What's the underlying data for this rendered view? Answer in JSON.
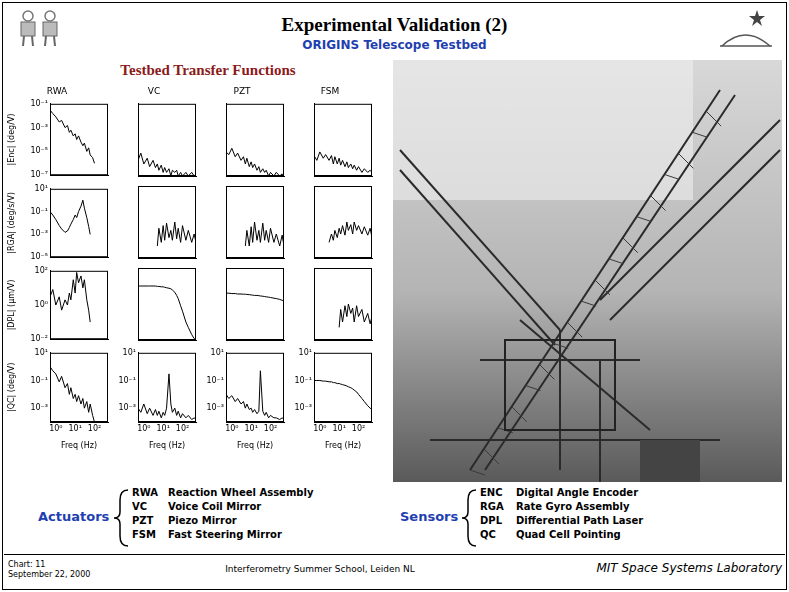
{
  "header": {
    "title": "Experimental Validation (2)",
    "subtitle": "ORIGINS Telescope Testbed"
  },
  "figure_title": "Testbed Transfer Functions",
  "chart_data": [
    {
      "type": "line",
      "title": "RWA",
      "y_label": "|Enc| (deg/V)",
      "color": "#000000",
      "log": true,
      "grid": false,
      "tick_labels": "y",
      "x": [
        0.5,
        0.7,
        1,
        1.5,
        2,
        3,
        4,
        5,
        6,
        8,
        10,
        12,
        15,
        20,
        25,
        30,
        40,
        50,
        60,
        80,
        100
      ],
      "values": [
        0.03,
        0.015,
        0.008,
        0.003,
        0.004,
        0.001,
        0.0015,
        0.0004,
        0.0006,
        0.0002,
        0.0003,
        0.0001,
        0.0002,
        6e-05,
        3e-05,
        5e-05,
        1e-05,
        2e-05,
        5e-06,
        3e-06,
        1e-06
      ],
      "xlim": [
        0.5,
        500
      ],
      "ylim": [
        1e-07,
        0.1
      ],
      "yticks": [
        {
          "value": 1e-07,
          "label": "10⁻⁷"
        },
        {
          "value": 1e-05,
          "label": "10⁻⁵"
        },
        {
          "value": 0.001,
          "label": "10⁻³"
        },
        {
          "value": 0.1,
          "label": "10⁻¹"
        }
      ]
    },
    {
      "type": "line",
      "title": "VC",
      "color": "#000000",
      "log": true,
      "grid": false,
      "tick_labels": false,
      "x": [
        0.5,
        0.7,
        1,
        1.5,
        2,
        3,
        4,
        5,
        6,
        8,
        10,
        12,
        15,
        20,
        25,
        30,
        40,
        50,
        60,
        80,
        100,
        150,
        200,
        300,
        400,
        500
      ],
      "values": [
        2e-06,
        8e-06,
        1e-06,
        3e-06,
        6e-07,
        2e-06,
        5e-07,
        1e-06,
        3e-07,
        8e-07,
        2e-07,
        5e-07,
        2e-07,
        4e-07,
        1e-07,
        3e-07,
        2e-07,
        3e-07,
        1e-07,
        2e-07,
        1e-07,
        2e-07,
        1e-07,
        2e-07,
        1e-07,
        1.5e-07
      ],
      "xlim": [
        0.5,
        500
      ],
      "ylim": [
        1e-07,
        0.1
      ]
    },
    {
      "type": "line",
      "title": "PZT",
      "color": "#000000",
      "log": true,
      "grid": false,
      "tick_labels": false,
      "x": [
        0.5,
        0.7,
        1,
        1.5,
        2,
        3,
        4,
        5,
        6,
        8,
        10,
        12,
        15,
        20,
        25,
        30,
        40,
        50,
        60,
        80,
        100,
        150,
        200,
        300,
        400,
        500
      ],
      "values": [
        1e-05,
        6e-06,
        2e-05,
        4e-06,
        8e-06,
        2e-06,
        4e-06,
        1e-06,
        3e-06,
        6e-07,
        1.5e-06,
        5e-07,
        1e-06,
        3e-07,
        6e-07,
        2e-07,
        4e-07,
        2e-07,
        3e-07,
        1e-07,
        2e-07,
        1e-07,
        2e-07,
        1e-07,
        1.5e-07,
        1e-07
      ],
      "xlim": [
        0.5,
        500
      ],
      "ylim": [
        1e-07,
        0.1
      ]
    },
    {
      "type": "line",
      "title": "FSM",
      "color": "#000000",
      "log": true,
      "grid": false,
      "tick_labels": false,
      "x": [
        0.5,
        0.7,
        1,
        1.5,
        2,
        3,
        4,
        5,
        6,
        8,
        10,
        12,
        15,
        20,
        25,
        30,
        40,
        50,
        60,
        80,
        100,
        150,
        200,
        300,
        400,
        500
      ],
      "values": [
        5e-06,
        2e-06,
        1e-05,
        3e-06,
        6e-06,
        2e-06,
        5e-06,
        1e-06,
        4e-06,
        1e-06,
        3e-06,
        8e-07,
        2e-06,
        6e-07,
        1.5e-06,
        5e-07,
        1e-06,
        4e-07,
        8e-07,
        3e-07,
        6e-07,
        2e-07,
        4e-07,
        2e-07,
        3e-07,
        2e-07
      ],
      "xlim": [
        0.5,
        500
      ],
      "ylim": [
        1e-07,
        0.1
      ]
    },
    {
      "type": "line",
      "y_label": "|RGA| (deg/s/V)",
      "color": "#000000",
      "log": true,
      "grid": false,
      "tick_labels": "y",
      "x": [
        0.5,
        0.7,
        1,
        1.5,
        2,
        3,
        4,
        5,
        6,
        8,
        10,
        12,
        15,
        20,
        25,
        30,
        40,
        50,
        60
      ],
      "values": [
        0.1,
        0.05,
        0.02,
        0.006,
        0.003,
        0.0015,
        0.002,
        0.004,
        0.008,
        0.02,
        0.05,
        0.03,
        0.1,
        0.3,
        1,
        0.2,
        0.03,
        0.005,
        0.001
      ],
      "xlim": [
        0.5,
        500
      ],
      "ylim": [
        1e-05,
        10
      ],
      "yticks": [
        {
          "value": 1e-05,
          "label": "10⁻⁵"
        },
        {
          "value": 0.001,
          "label": "10⁻³"
        },
        {
          "value": 0.1,
          "label": "10⁻¹"
        },
        {
          "value": 10,
          "label": "10¹"
        }
      ]
    },
    {
      "type": "line",
      "color": "#000000",
      "log": true,
      "grid": false,
      "tick_labels": false,
      "x": [
        5,
        6,
        8,
        10,
        12,
        15,
        20,
        25,
        30,
        40,
        50,
        60,
        80,
        100,
        150,
        200,
        300,
        400,
        500
      ],
      "values": [
        0.0001,
        0.003,
        0.0002,
        0.005,
        0.0003,
        0.008,
        0.0005,
        0.002,
        0.0003,
        0.01,
        0.0004,
        0.003,
        0.0002,
        0.005,
        0.0003,
        0.002,
        0.0002,
        0.001,
        0.0002
      ],
      "xlim": [
        0.5,
        500
      ],
      "ylim": [
        1e-05,
        10
      ]
    },
    {
      "type": "line",
      "color": "#000000",
      "log": true,
      "grid": false,
      "tick_labels": false,
      "x": [
        5,
        6,
        8,
        10,
        12,
        15,
        20,
        25,
        30,
        40,
        50,
        60,
        80,
        100,
        150,
        200,
        300,
        400,
        500
      ],
      "values": [
        0.0001,
        0.002,
        0.0001,
        0.004,
        0.0002,
        0.01,
        0.0003,
        0.002,
        0.0002,
        0.008,
        0.0003,
        0.002,
        0.0002,
        0.003,
        0.0002,
        0.001,
        0.0001,
        0.0008,
        0.0001
      ],
      "xlim": [
        0.5,
        500
      ],
      "ylim": [
        1e-05,
        10
      ]
    },
    {
      "type": "line",
      "color": "#000000",
      "log": true,
      "grid": false,
      "tick_labels": false,
      "x": [
        3,
        4,
        5,
        6,
        8,
        10,
        12,
        15,
        20,
        25,
        30,
        40,
        50,
        60,
        80,
        100,
        150,
        200,
        300,
        400,
        500
      ],
      "values": [
        0.0002,
        0.001,
        0.0003,
        0.002,
        0.0005,
        0.003,
        0.001,
        0.005,
        0.0008,
        0.01,
        0.002,
        0.006,
        0.001,
        0.01,
        0.002,
        0.005,
        0.001,
        0.004,
        0.0008,
        0.003,
        0.0005
      ],
      "xlim": [
        0.5,
        500
      ],
      "ylim": [
        1e-05,
        10
      ]
    },
    {
      "type": "line",
      "y_label": "|DPL| (μm/V)",
      "color": "#000000",
      "log": true,
      "grid": false,
      "tick_labels": "y",
      "x": [
        0.5,
        0.7,
        1,
        1.5,
        2,
        3,
        4,
        5,
        6,
        8,
        10,
        12,
        15,
        20,
        25,
        30,
        40,
        50,
        60
      ],
      "values": [
        3,
        8,
        1,
        3,
        0.5,
        2,
        1,
        5,
        2,
        30,
        5,
        80,
        20,
        50,
        10,
        30,
        2,
        0.5,
        0.1
      ],
      "xlim": [
        0.5,
        500
      ],
      "ylim": [
        0.01,
        100
      ],
      "yticks": [
        {
          "value": 0.01,
          "label": "10⁻²"
        },
        {
          "value": 1,
          "label": "10⁰"
        },
        {
          "value": 100,
          "label": "10²"
        }
      ]
    },
    {
      "type": "line",
      "color": "#000000",
      "log": true,
      "grid": false,
      "tick_labels": false,
      "x": [
        0.5,
        0.7,
        1,
        1.5,
        2,
        3,
        4,
        5,
        6,
        8,
        10,
        12,
        15,
        20,
        25,
        30,
        40,
        50,
        60,
        80,
        100,
        150,
        200,
        300,
        400,
        500
      ],
      "values": [
        10,
        10,
        10,
        10,
        10,
        10,
        10,
        9.5,
        9.5,
        9,
        9,
        8.5,
        8,
        7.5,
        7,
        6,
        4.5,
        3,
        2,
        0.8,
        0.4,
        0.1,
        0.05,
        0.02,
        0.012,
        0.01
      ],
      "xlim": [
        0.5,
        500
      ],
      "ylim": [
        0.01,
        100
      ]
    },
    {
      "type": "line",
      "color": "#000000",
      "log": true,
      "grid": false,
      "tick_labels": false,
      "x": [
        0.5,
        0.7,
        1,
        1.5,
        2,
        3,
        4,
        5,
        6,
        8,
        10,
        12,
        15,
        20,
        25,
        30,
        40,
        50,
        60,
        80,
        100,
        150,
        200,
        300,
        400,
        500
      ],
      "values": [
        4,
        4,
        3.8,
        3.8,
        3.6,
        3.6,
        3.5,
        3.5,
        3.4,
        3.3,
        3.2,
        3.1,
        3,
        3,
        2.9,
        2.8,
        2.7,
        2.6,
        2.5,
        2.4,
        2.3,
        2.1,
        2,
        1.8,
        1.6,
        1.5
      ],
      "xlim": [
        0.5,
        500
      ],
      "ylim": [
        0.01,
        100
      ]
    },
    {
      "type": "line",
      "color": "#000000",
      "log": true,
      "grid": false,
      "tick_labels": false,
      "x": [
        10,
        12,
        15,
        20,
        25,
        30,
        40,
        50,
        60,
        80,
        100,
        150,
        200,
        300,
        400,
        500
      ],
      "values": [
        0.05,
        0.5,
        0.1,
        0.8,
        0.2,
        1,
        0.3,
        0.6,
        0.1,
        0.8,
        0.2,
        0.5,
        0.1,
        0.3,
        0.08,
        0.2
      ],
      "xlim": [
        0.5,
        500
      ],
      "ylim": [
        0.01,
        100
      ]
    },
    {
      "type": "line",
      "y_label": "|QC| (deg/V)",
      "x_label": "Freq (Hz)",
      "color": "#000000",
      "log": true,
      "grid": false,
      "tick_labels": true,
      "x": [
        0.5,
        0.7,
        1,
        1.5,
        2,
        3,
        4,
        5,
        6,
        8,
        10,
        12,
        15,
        20,
        25,
        30,
        40,
        50,
        60,
        80,
        100
      ],
      "values": [
        1,
        0.5,
        0.3,
        0.08,
        0.2,
        0.03,
        0.06,
        0.01,
        0.03,
        0.005,
        0.01,
        0.003,
        0.008,
        0.002,
        0.005,
        0.001,
        0.003,
        0.0005,
        0.002,
        0.0003,
        0.0001
      ],
      "xlim": [
        0.5,
        500
      ],
      "ylim": [
        0.0001,
        10
      ],
      "xticks": [
        {
          "value": 1,
          "label": "10⁰"
        },
        {
          "value": 10,
          "label": "10¹"
        },
        {
          "value": 100,
          "label": "10²"
        }
      ],
      "yticks": [
        {
          "value": 0.001,
          "label": "10⁻³"
        },
        {
          "value": 0.1,
          "label": "10⁻¹"
        },
        {
          "value": 10,
          "label": "10¹"
        }
      ]
    },
    {
      "type": "line",
      "x_label": "Freq (Hz)",
      "color": "#000000",
      "log": true,
      "grid": false,
      "tick_labels": true,
      "x": [
        0.5,
        0.7,
        1,
        1.5,
        2,
        3,
        4,
        5,
        6,
        8,
        10,
        12,
        15,
        20,
        25,
        30,
        40,
        50,
        60,
        80,
        100,
        150,
        200,
        300,
        400,
        500
      ],
      "values": [
        0.001,
        0.0005,
        0.002,
        0.0004,
        0.001,
        0.0003,
        0.0008,
        0.0003,
        0.0006,
        0.0002,
        0.0005,
        0.0003,
        0.001,
        0.3,
        0.002,
        0.0005,
        0.001,
        0.0003,
        0.0006,
        0.0002,
        0.0004,
        0.0002,
        0.0003,
        0.00015,
        0.0002,
        0.00015
      ],
      "xlim": [
        0.5,
        500
      ],
      "ylim": [
        0.0001,
        10
      ],
      "xticks": [
        {
          "value": 1,
          "label": "10⁰"
        },
        {
          "value": 10,
          "label": "10¹"
        },
        {
          "value": 100,
          "label": "10²"
        }
      ],
      "yticks": [
        {
          "value": 0.001,
          "label": "10⁻³"
        },
        {
          "value": 0.1,
          "label": "10⁻¹"
        },
        {
          "value": 10,
          "label": "10¹"
        }
      ]
    },
    {
      "type": "line",
      "x_label": "Freq (Hz)",
      "color": "#000000",
      "log": true,
      "grid": false,
      "tick_labels": true,
      "x": [
        0.5,
        0.7,
        1,
        1.5,
        2,
        3,
        4,
        5,
        6,
        8,
        10,
        12,
        15,
        20,
        25,
        30,
        40,
        50,
        60,
        80,
        100,
        150,
        200,
        300,
        400,
        500
      ],
      "values": [
        0.01,
        0.005,
        0.008,
        0.003,
        0.005,
        0.002,
        0.003,
        0.001,
        0.002,
        0.0008,
        0.001,
        0.0005,
        0.0008,
        0.0004,
        0.0006,
        0.5,
        0.0006,
        0.0003,
        0.0005,
        0.0002,
        0.0003,
        0.0002,
        0.0002,
        0.00015,
        0.0002,
        0.00015
      ],
      "xlim": [
        0.5,
        500
      ],
      "ylim": [
        0.0001,
        10
      ],
      "xticks": [
        {
          "value": 1,
          "label": "10⁰"
        },
        {
          "value": 10,
          "label": "10¹"
        },
        {
          "value": 100,
          "label": "10²"
        }
      ],
      "yticks": [
        {
          "value": 0.001,
          "label": "10⁻³"
        },
        {
          "value": 0.1,
          "label": "10⁻¹"
        },
        {
          "value": 10,
          "label": "10¹"
        }
      ]
    },
    {
      "type": "line",
      "x_label": "Freq (Hz)",
      "color": "#000000",
      "log": true,
      "grid": false,
      "tick_labels": true,
      "x": [
        0.5,
        0.7,
        1,
        1.5,
        2,
        3,
        4,
        5,
        6,
        8,
        10,
        12,
        15,
        20,
        25,
        30,
        40,
        50,
        60,
        80,
        100,
        150,
        200,
        300,
        400,
        500
      ],
      "values": [
        0.1,
        0.1,
        0.1,
        0.09,
        0.09,
        0.08,
        0.08,
        0.07,
        0.07,
        0.06,
        0.06,
        0.055,
        0.05,
        0.045,
        0.04,
        0.035,
        0.03,
        0.025,
        0.02,
        0.015,
        0.01,
        0.005,
        0.003,
        0.0015,
        0.001,
        0.0008
      ],
      "xlim": [
        0.5,
        500
      ],
      "ylim": [
        0.0001,
        10
      ],
      "xticks": [
        {
          "value": 1,
          "label": "10⁰"
        },
        {
          "value": 10,
          "label": "10¹"
        },
        {
          "value": 100,
          "label": "10²"
        }
      ],
      "yticks": [
        {
          "value": 0.001,
          "label": "10⁻³"
        },
        {
          "value": 0.1,
          "label": "10⁻¹"
        },
        {
          "value": 10,
          "label": "10¹"
        }
      ]
    }
  ],
  "actuators": {
    "heading": "Actuators",
    "items": [
      {
        "code": "RWA",
        "name": "Reaction Wheel Assembly"
      },
      {
        "code": "VC",
        "name": "Voice Coil Mirror"
      },
      {
        "code": "PZT",
        "name": "Piezo Mirror"
      },
      {
        "code": "FSM",
        "name": "Fast Steering Mirror"
      }
    ]
  },
  "sensors": {
    "heading": "Sensors",
    "items": [
      {
        "code": "ENC",
        "name": "Digital Angle Encoder"
      },
      {
        "code": "RGA",
        "name": "Rate Gyro Assembly"
      },
      {
        "code": "DPL",
        "name": "Differential Path Laser"
      },
      {
        "code": "QC",
        "name": "Quad Cell Pointing"
      }
    ]
  },
  "footer": {
    "chart": "Chart: 11",
    "date": "September 22, 2000",
    "event": "Interferometry Summer School, Leiden NL",
    "lab": "MIT Space Systems Laboratory"
  }
}
